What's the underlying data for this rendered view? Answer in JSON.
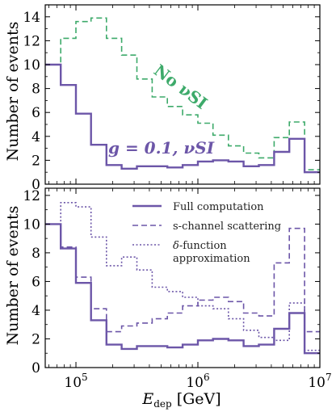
{
  "colors": {
    "purple": "#6c56a8",
    "green": "#3daa6a"
  },
  "chart_data": [
    {
      "type": "line",
      "panel": "top",
      "xlabel": "",
      "ylabel": "Number of events",
      "xscale": "log",
      "xlim": [
        56000,
        10000000
      ],
      "ylim": [
        0,
        15
      ],
      "yticks": [
        0,
        2,
        4,
        6,
        8,
        10,
        12,
        14
      ],
      "grid": false,
      "annotations": [
        "No νSI",
        "g = 0.1, νSI"
      ],
      "x_edges": [
        56000,
        75000,
        100000,
        133000,
        178000,
        237000,
        316000,
        422000,
        562000,
        750000,
        1000000,
        1330000,
        1780000,
        2370000,
        3160000,
        4220000,
        5620000,
        7500000,
        10000000
      ],
      "series": [
        {
          "name": "No νSI",
          "style": "dashed",
          "color": "#3daa6a",
          "values": [
            10.0,
            12.2,
            13.6,
            13.9,
            12.2,
            10.8,
            8.8,
            7.3,
            6.5,
            5.8,
            5.1,
            4.1,
            3.2,
            2.6,
            2.2,
            3.9,
            5.2,
            1.2
          ]
        },
        {
          "name": "g = 0.1, νSI",
          "style": "solid",
          "color": "#6c56a8",
          "values": [
            10.0,
            8.3,
            5.9,
            3.3,
            1.6,
            1.3,
            1.5,
            1.5,
            1.4,
            1.6,
            1.9,
            2.0,
            1.9,
            1.5,
            1.6,
            2.7,
            3.8,
            1.0
          ]
        }
      ]
    },
    {
      "type": "line",
      "panel": "bottom",
      "xlabel": "E_dep [GeV]",
      "ylabel": "Number of events",
      "xscale": "log",
      "xlim": [
        56000,
        10000000
      ],
      "ylim": [
        0,
        12.5
      ],
      "yticks": [
        0,
        2,
        4,
        6,
        8,
        10,
        12
      ],
      "xticks": [
        "10^5",
        "10^6",
        "10^7"
      ],
      "grid": false,
      "legend_position": "top-right",
      "x_edges": [
        56000,
        75000,
        100000,
        133000,
        178000,
        237000,
        316000,
        422000,
        562000,
        750000,
        1000000,
        1330000,
        1780000,
        2370000,
        3160000,
        4220000,
        5620000,
        7500000,
        10000000
      ],
      "series": [
        {
          "name": "Full computation",
          "style": "solid",
          "color": "#6c56a8",
          "values": [
            10.0,
            8.3,
            5.9,
            3.3,
            1.6,
            1.3,
            1.5,
            1.5,
            1.4,
            1.6,
            1.9,
            2.0,
            1.9,
            1.5,
            1.6,
            2.7,
            3.8,
            1.0
          ]
        },
        {
          "name": "s-channel scattering",
          "style": "dashed",
          "color": "#6c56a8",
          "values": [
            10.0,
            8.4,
            6.3,
            4.1,
            2.5,
            2.9,
            3.1,
            3.4,
            3.8,
            4.3,
            4.7,
            4.9,
            4.6,
            3.8,
            3.6,
            7.3,
            9.7,
            2.5
          ]
        },
        {
          "name": "δ-function approximation",
          "style": "dotted",
          "color": "#6c56a8",
          "values": [
            10.0,
            11.5,
            11.2,
            9.1,
            7.1,
            7.7,
            6.8,
            5.6,
            5.3,
            4.9,
            4.3,
            4.1,
            3.4,
            2.6,
            2.1,
            1.9,
            4.5,
            1.2
          ]
        }
      ]
    }
  ]
}
